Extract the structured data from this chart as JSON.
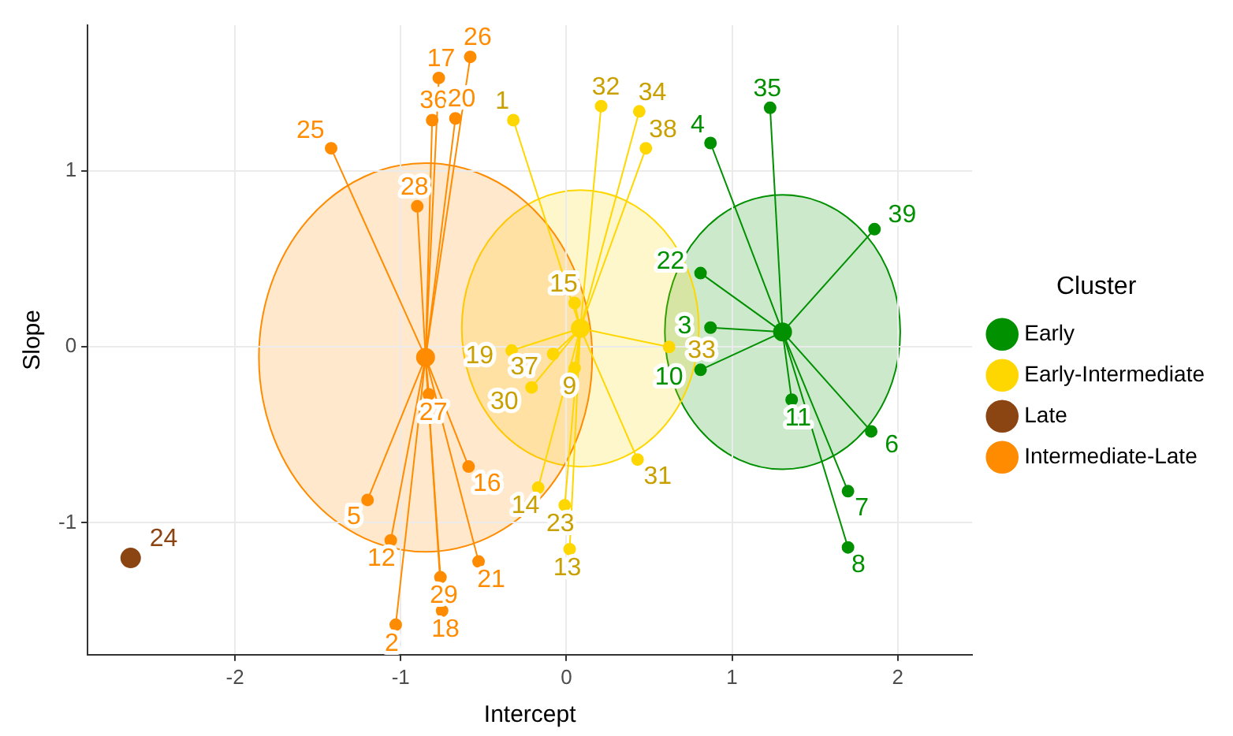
{
  "chart_data": {
    "type": "scatter",
    "xlabel": "Intercept",
    "ylabel": "Slope",
    "legend_title": "Cluster",
    "legend": "right",
    "grid": true,
    "marker": "circle",
    "xlim": [
      -2.89,
      2.45
    ],
    "xticks": [
      -2,
      -1,
      0,
      1,
      2
    ],
    "ylim": [
      -1.75,
      1.83
    ],
    "yticks": [
      -1,
      0,
      1
    ],
    "series": [
      {
        "name": "Early",
        "color": "#009000",
        "x": [
          0.87,
          1.23,
          1.86,
          0.81,
          0.87,
          0.81,
          1.36,
          1.84,
          1.7,
          1.7
        ],
        "values": [
          1.16,
          1.36,
          0.67,
          0.42,
          0.11,
          -0.13,
          -0.3,
          -0.48,
          -0.82,
          -1.14
        ]
      },
      {
        "name": "Early-Intermediate",
        "color": "#ffd700",
        "x": [
          -0.32,
          0.21,
          0.44,
          0.48,
          0.62,
          -0.08,
          -0.33,
          0.05,
          0.05,
          -0.21,
          -0.17,
          0.43,
          -0.01,
          0.02
        ],
        "values": [
          1.29,
          1.37,
          1.34,
          1.13,
          0.0,
          -0.04,
          -0.02,
          0.25,
          -0.12,
          -0.23,
          -0.8,
          -0.64,
          -0.9,
          -1.15
        ]
      },
      {
        "name": "Late",
        "color": "#8b4513",
        "x": [
          -2.63
        ],
        "values": [
          -1.2
        ]
      },
      {
        "name": "Intermediate-Late",
        "color": "#ff8c00",
        "x": [
          -0.58,
          -0.77,
          -0.81,
          -0.67,
          -1.42,
          -0.9,
          -0.83,
          -0.59,
          -1.2,
          -1.06,
          -1.03,
          -0.76,
          -0.75,
          -0.53
        ],
        "values": [
          1.65,
          1.53,
          1.29,
          1.3,
          1.13,
          0.8,
          -0.27,
          -0.68,
          -0.87,
          -1.1,
          -1.58,
          -1.31,
          -1.5,
          -1.22
        ]
      }
    ],
    "annotations": [
      {
        "text": "4",
        "x": 0.87,
        "y": 1.16
      },
      {
        "text": "35",
        "x": 1.23,
        "y": 1.36
      },
      {
        "text": "39",
        "x": 1.86,
        "y": 0.67
      },
      {
        "text": "22",
        "x": 0.81,
        "y": 0.42
      },
      {
        "text": "3",
        "x": 0.87,
        "y": 0.11
      },
      {
        "text": "10",
        "x": 0.81,
        "y": -0.13
      },
      {
        "text": "11",
        "x": 1.36,
        "y": -0.3
      },
      {
        "text": "6",
        "x": 1.84,
        "y": -0.48
      },
      {
        "text": "7",
        "x": 1.7,
        "y": -0.82
      },
      {
        "text": "8",
        "x": 1.7,
        "y": -1.14
      },
      {
        "text": "1",
        "x": -0.32,
        "y": 1.29
      },
      {
        "text": "32",
        "x": 0.21,
        "y": 1.37
      },
      {
        "text": "34",
        "x": 0.44,
        "y": 1.34
      },
      {
        "text": "38",
        "x": 0.48,
        "y": 1.13
      },
      {
        "text": "33",
        "x": 0.62,
        "y": 0.0
      },
      {
        "text": "37",
        "x": -0.08,
        "y": -0.04
      },
      {
        "text": "19",
        "x": -0.33,
        "y": -0.02
      },
      {
        "text": "15",
        "x": 0.05,
        "y": 0.25
      },
      {
        "text": "9",
        "x": 0.05,
        "y": -0.12
      },
      {
        "text": "30",
        "x": -0.21,
        "y": -0.23
      },
      {
        "text": "14",
        "x": -0.17,
        "y": -0.8
      },
      {
        "text": "31",
        "x": 0.43,
        "y": -0.64
      },
      {
        "text": "23",
        "x": -0.01,
        "y": -0.9
      },
      {
        "text": "13",
        "x": 0.02,
        "y": -1.15
      },
      {
        "text": "24",
        "x": -2.63,
        "y": -1.2
      },
      {
        "text": "26",
        "x": -0.58,
        "y": 1.65
      },
      {
        "text": "17",
        "x": -0.77,
        "y": 1.53
      },
      {
        "text": "36",
        "x": -0.81,
        "y": 1.29
      },
      {
        "text": "20",
        "x": -0.67,
        "y": 1.3
      },
      {
        "text": "25",
        "x": -1.42,
        "y": 1.13
      },
      {
        "text": "28",
        "x": -0.9,
        "y": 0.8
      },
      {
        "text": "27",
        "x": -0.83,
        "y": -0.27
      },
      {
        "text": "16",
        "x": -0.59,
        "y": -0.68
      },
      {
        "text": "5",
        "x": -1.2,
        "y": -0.87
      },
      {
        "text": "12",
        "x": -1.06,
        "y": -1.1
      },
      {
        "text": "2",
        "x": -1.03,
        "y": -1.58
      },
      {
        "text": "29",
        "x": -0.76,
        "y": -1.31
      },
      {
        "text": "18",
        "x": -0.75,
        "y": -1.5
      },
      {
        "text": "21",
        "x": -0.53,
        "y": -1.22
      }
    ]
  }
}
